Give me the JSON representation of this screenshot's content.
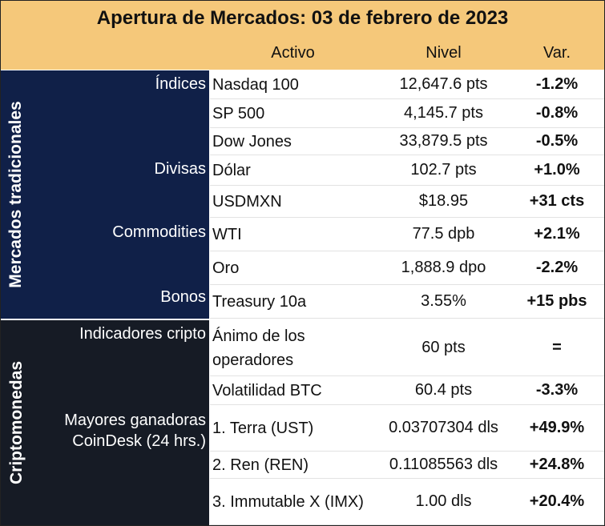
{
  "title": "Apertura de Mercados: 03 de febrero de 2023",
  "headers": {
    "activo": "Activo",
    "nivel": "Nivel",
    "var": "Var."
  },
  "sections": {
    "tradicionales": "Mercados tradicionales",
    "cripto": "Criptomonedas"
  },
  "categories": {
    "indices": "Índices",
    "divisas": "Divisas",
    "commodities": "Commodities",
    "bonos": "Bonos",
    "indicadores": "Indicadores cripto",
    "ganadoras": "Mayores ganadoras CoinDesk (24 hrs.)"
  },
  "rows": [
    {
      "activo": "Nasdaq 100",
      "nivel": "12,647.6 pts",
      "var": "-1.2%"
    },
    {
      "activo": "SP 500",
      "nivel": "4,145.7 pts",
      "var": "-0.8%"
    },
    {
      "activo": "Dow Jones",
      "nivel": "33,879.5 pts",
      "var": "-0.5%"
    },
    {
      "activo": "Dólar",
      "nivel": "102.7 pts",
      "var": "+1.0%"
    },
    {
      "activo": "USDMXN",
      "nivel": "$18.95",
      "var": "+31 cts"
    },
    {
      "activo": "WTI",
      "nivel": "77.5 dpb",
      "var": "+2.1%"
    },
    {
      "activo": "Oro",
      "nivel": "1,888.9 dpo",
      "var": "-2.2%"
    },
    {
      "activo": "Treasury 10a",
      "nivel": "3.55%",
      "var": "+15 pbs"
    },
    {
      "activo": "Ánimo de los operadores",
      "nivel": "60 pts",
      "var": "="
    },
    {
      "activo": "Volatilidad BTC",
      "nivel": "60.4 pts",
      "var": "-3.3%"
    },
    {
      "activo": "1. Terra (UST)",
      "nivel": "0.03707304 dls",
      "var": "+49.9%"
    },
    {
      "activo": "2. Ren (REN)",
      "nivel": "0.11085563 dls",
      "var": "+24.8%"
    },
    {
      "activo": "3. Immutable X (IMX)",
      "nivel": "1.00 dls",
      "var": "+20.4%"
    }
  ]
}
